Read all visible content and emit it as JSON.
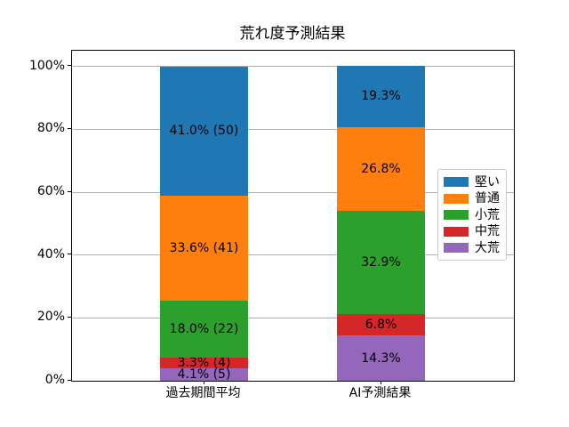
{
  "chart_data": {
    "type": "bar",
    "variant": "stacked_percentage",
    "title": "荒れ度予測結果",
    "categories": [
      "過去期間平均",
      "AI予測結果"
    ],
    "series": [
      {
        "name": "堅い",
        "color": "#1f77b4",
        "values": [
          41.0,
          19.3
        ],
        "labels": [
          "41.0% (50)",
          "19.3%"
        ]
      },
      {
        "name": "普通",
        "color": "#ff7f0e",
        "values": [
          33.6,
          26.8
        ],
        "labels": [
          "33.6% (41)",
          "26.8%"
        ]
      },
      {
        "name": "小荒",
        "color": "#2ca02c",
        "values": [
          18.0,
          32.9
        ],
        "labels": [
          "18.0% (22)",
          "32.9%"
        ]
      },
      {
        "name": "中荒",
        "color": "#d62728",
        "values": [
          3.3,
          6.8
        ],
        "labels": [
          "3.3% (4)",
          "6.8%"
        ]
      },
      {
        "name": "大荒",
        "color": "#9467bd",
        "values": [
          4.1,
          14.3
        ],
        "labels": [
          "4.1% (5)",
          "14.3%"
        ]
      }
    ],
    "stack_order_bottom_to_top": [
      "大荒",
      "中荒",
      "小荒",
      "普通",
      "堅い"
    ],
    "y_ticks": [
      "0%",
      "20%",
      "40%",
      "60%",
      "80%",
      "100%"
    ],
    "ylim": [
      0,
      105
    ],
    "grid": true,
    "grid_color": "#b0b0b0",
    "axis_color": "#000000",
    "legend_position": "right"
  }
}
